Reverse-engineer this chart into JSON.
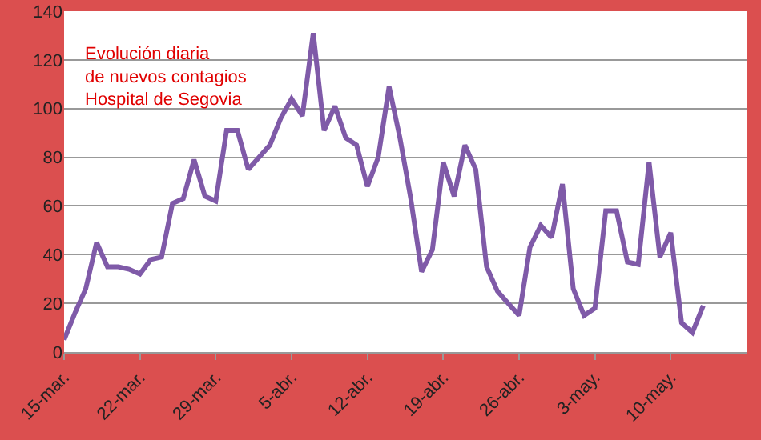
{
  "chart_data": {
    "type": "line",
    "title": "Evolución diaria\nde nuevos contagios\nHospital de Segovia",
    "x": [
      "--03-15",
      "--03-16",
      "--03-17",
      "--03-18",
      "--03-19",
      "--03-20",
      "--03-21",
      "--03-22",
      "--03-23",
      "--03-24",
      "--03-25",
      "--03-26",
      "--03-27",
      "--03-28",
      "--03-29",
      "--03-30",
      "--03-31",
      "--04-01",
      "--04-02",
      "--04-03",
      "--04-04",
      "--04-05",
      "--04-06",
      "--04-07",
      "--04-08",
      "--04-09",
      "--04-10",
      "--04-11",
      "--04-12",
      "--04-13",
      "--04-14",
      "--04-15",
      "--04-16",
      "--04-17",
      "--04-18",
      "--04-19",
      "--04-20",
      "--04-21",
      "--04-22",
      "--04-23",
      "--04-24",
      "--04-25",
      "--04-26",
      "--04-27",
      "--04-28",
      "--04-29",
      "--04-30",
      "--05-01",
      "--05-02",
      "--05-03",
      "--05-04",
      "--05-05",
      "--05-06",
      "--05-07",
      "--05-08",
      "--05-09",
      "--05-10",
      "--05-11",
      "--05-12",
      "--05-13"
    ],
    "series": [
      {
        "color": "#7f5aa8",
        "values": [
          5,
          16,
          26,
          45,
          35,
          35,
          34,
          32,
          38,
          39,
          61,
          63,
          79,
          64,
          62,
          91,
          91,
          75,
          80,
          85,
          96,
          104,
          97,
          131,
          91,
          101,
          88,
          85,
          68,
          80,
          109,
          88,
          63,
          33,
          42,
          78,
          64,
          85,
          75,
          35,
          25,
          20,
          15,
          43,
          52,
          47,
          69,
          26,
          15,
          18,
          58,
          58,
          37,
          36,
          78,
          39,
          49,
          12,
          8,
          19
        ]
      }
    ],
    "xlim": [
      "--03-15",
      "--05-17"
    ],
    "xticks": [
      {
        "value": "--03-15",
        "label": "15-mar."
      },
      {
        "value": "--03-22",
        "label": "22-mar."
      },
      {
        "value": "--03-29",
        "label": "29-mar."
      },
      {
        "value": "--04-05",
        "label": "5-abr."
      },
      {
        "value": "--04-12",
        "label": "12-abr."
      },
      {
        "value": "--04-19",
        "label": "19-abr."
      },
      {
        "value": "--04-26",
        "label": "26-abr."
      },
      {
        "value": "--05-03",
        "label": "3-may."
      },
      {
        "value": "--05-10",
        "label": "10-may."
      }
    ],
    "ylim": [
      0,
      140
    ],
    "yticks": [
      0,
      20,
      40,
      60,
      80,
      100,
      120,
      140
    ],
    "grid": "y",
    "marker": "none",
    "line_style": "solid"
  }
}
